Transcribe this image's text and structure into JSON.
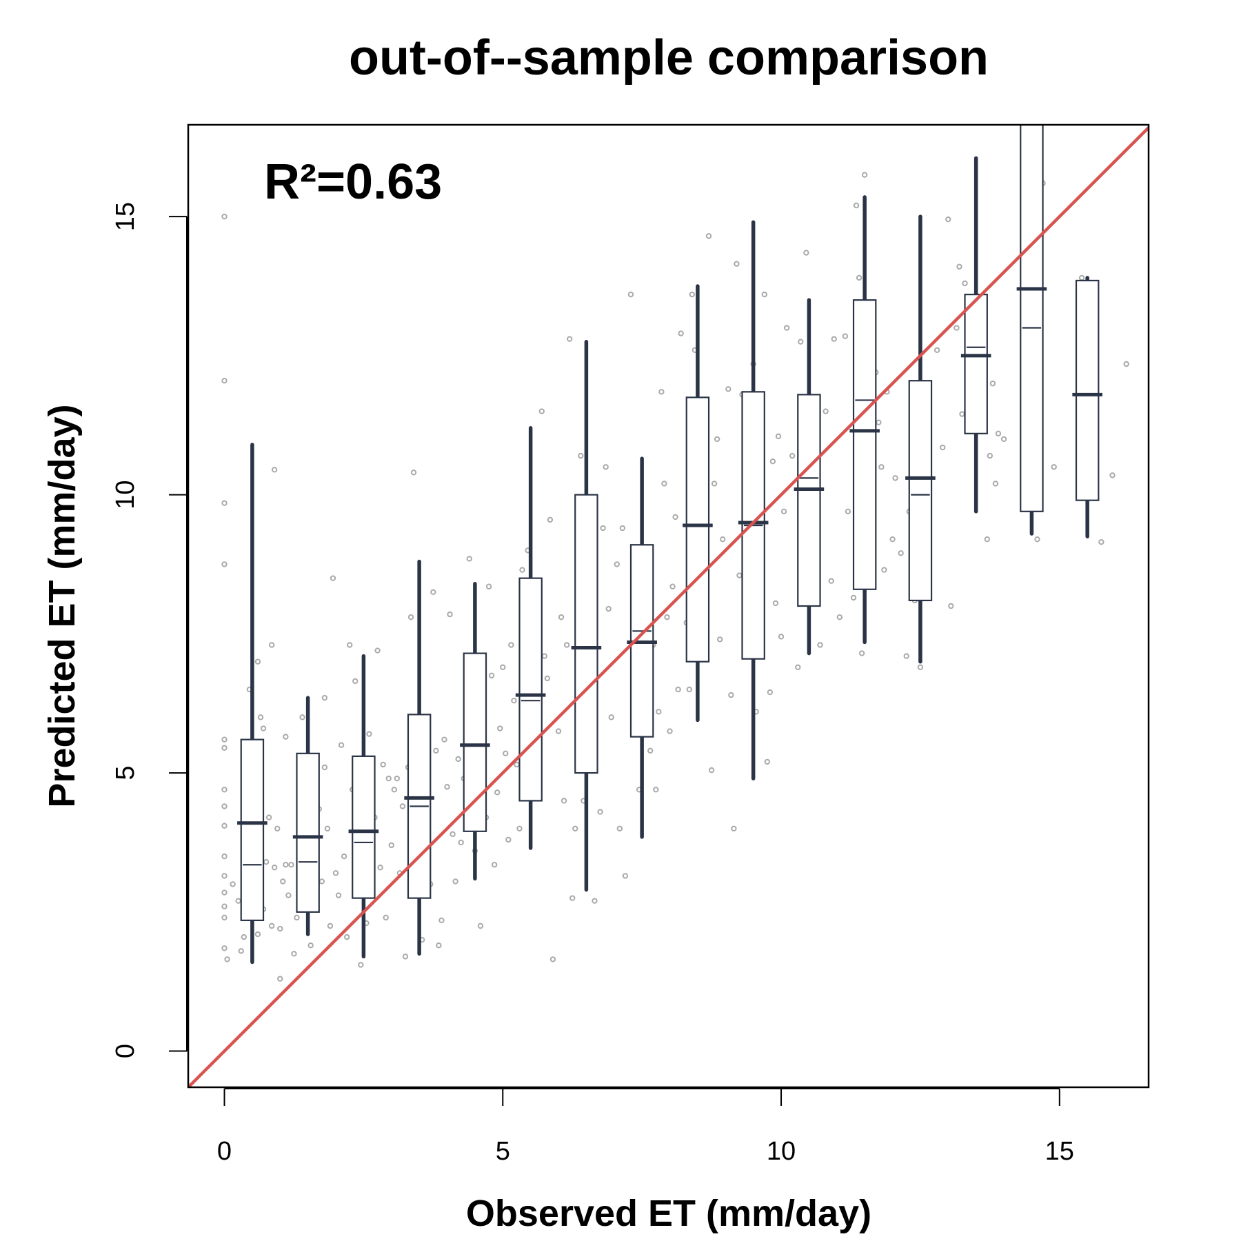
{
  "chart_data": {
    "type": "scatter",
    "title": "out-of--sample comparison",
    "xlabel": "Observed ET (mm/day)",
    "ylabel": "Predicted ET (mm/day)",
    "annotation": "R²=0.63",
    "xlim": [
      -0.65,
      16.6
    ],
    "ylim": [
      -0.65,
      16.65
    ],
    "xticks": [
      0,
      5,
      10,
      15
    ],
    "yticks": [
      0,
      5,
      10,
      15
    ],
    "grid": false,
    "colors": {
      "points": "#aaaaaa",
      "boxes": "#2b3446",
      "identity_line": "#d9534f"
    },
    "identity_line": {
      "x": [
        -0.65,
        16.6
      ],
      "y": [
        -0.65,
        16.6
      ]
    },
    "bins": [
      {
        "x": 0.5,
        "q1": 2.35,
        "median": 3.35,
        "q3": 5.6,
        "mean": 4.1,
        "whisker_low": 1.6,
        "whisker_high": 10.9
      },
      {
        "x": 1.5,
        "q1": 2.5,
        "median": 3.4,
        "q3": 5.35,
        "mean": 3.85,
        "whisker_low": 2.1,
        "whisker_high": 6.35
      },
      {
        "x": 2.5,
        "q1": 2.75,
        "median": 3.75,
        "q3": 5.3,
        "mean": 3.95,
        "whisker_low": 1.7,
        "whisker_high": 7.1
      },
      {
        "x": 3.5,
        "q1": 2.75,
        "median": 4.4,
        "q3": 6.05,
        "mean": 4.55,
        "whisker_low": 1.75,
        "whisker_high": 8.8
      },
      {
        "x": 4.5,
        "q1": 3.95,
        "median": 5.5,
        "q3": 7.15,
        "mean": 5.5,
        "whisker_low": 3.1,
        "whisker_high": 8.4
      },
      {
        "x": 5.5,
        "q1": 4.5,
        "median": 6.3,
        "q3": 8.5,
        "mean": 6.4,
        "whisker_low": 3.65,
        "whisker_high": 11.2
      },
      {
        "x": 6.5,
        "q1": 5.0,
        "median": 7.25,
        "q3": 10.0,
        "mean": 7.25,
        "whisker_low": 2.9,
        "whisker_high": 12.75
      },
      {
        "x": 7.5,
        "q1": 5.65,
        "median": 7.55,
        "q3": 9.1,
        "mean": 7.35,
        "whisker_low": 3.85,
        "whisker_high": 10.65
      },
      {
        "x": 8.5,
        "q1": 7.0,
        "median": 9.45,
        "q3": 11.75,
        "mean": 9.45,
        "whisker_low": 5.95,
        "whisker_high": 13.75
      },
      {
        "x": 9.5,
        "q1": 7.05,
        "median": 9.45,
        "q3": 11.85,
        "mean": 9.5,
        "whisker_low": 4.9,
        "whisker_high": 14.9
      },
      {
        "x": 10.5,
        "q1": 8.0,
        "median": 10.3,
        "q3": 11.8,
        "mean": 10.1,
        "whisker_low": 7.15,
        "whisker_high": 13.5
      },
      {
        "x": 11.5,
        "q1": 8.3,
        "median": 11.7,
        "q3": 13.5,
        "mean": 11.15,
        "whisker_low": 7.35,
        "whisker_high": 15.35
      },
      {
        "x": 12.5,
        "q1": 8.1,
        "median": 10.0,
        "q3": 12.05,
        "mean": 10.3,
        "whisker_low": 7.0,
        "whisker_high": 15.0
      },
      {
        "x": 13.5,
        "q1": 11.1,
        "median": 12.65,
        "q3": 13.6,
        "mean": 12.5,
        "whisker_low": 9.7,
        "whisker_high": 16.05
      },
      {
        "x": 14.5,
        "q1": 9.7,
        "median": 13.0,
        "q3": 16.65,
        "mean": 13.7,
        "whisker_low": 9.3,
        "whisker_high": 16.65
      },
      {
        "x": 15.5,
        "q1": 9.9,
        "median": 11.8,
        "q3": 13.85,
        "mean": 11.8,
        "whisker_low": 9.25,
        "whisker_high": 13.9
      }
    ],
    "points": [
      [
        0.0,
        15.0
      ],
      [
        0.0,
        12.05
      ],
      [
        0.0,
        9.85
      ],
      [
        0.0,
        8.75
      ],
      [
        0.0,
        5.6
      ],
      [
        0.0,
        5.45
      ],
      [
        0.0,
        4.7
      ],
      [
        0.0,
        4.4
      ],
      [
        0.0,
        4.05
      ],
      [
        0.0,
        3.5
      ],
      [
        0.0,
        3.15
      ],
      [
        0.0,
        2.85
      ],
      [
        0.0,
        2.6
      ],
      [
        0.0,
        2.4
      ],
      [
        0.0,
        1.85
      ],
      [
        0.05,
        1.65
      ],
      [
        0.15,
        3.0
      ],
      [
        0.25,
        2.7
      ],
      [
        0.3,
        1.8
      ],
      [
        0.35,
        2.05
      ],
      [
        0.35,
        3.9
      ],
      [
        0.4,
        4.5
      ],
      [
        0.4,
        2.9
      ],
      [
        0.45,
        6.5
      ],
      [
        0.5,
        4.35
      ],
      [
        0.55,
        3.2
      ],
      [
        0.55,
        2.7
      ],
      [
        0.6,
        4.5
      ],
      [
        0.6,
        7.0
      ],
      [
        0.6,
        2.1
      ],
      [
        0.65,
        3.8
      ],
      [
        0.65,
        6.0
      ],
      [
        0.7,
        5.8
      ],
      [
        0.7,
        2.55
      ],
      [
        0.75,
        3.4
      ],
      [
        0.8,
        4.2
      ],
      [
        0.85,
        7.3
      ],
      [
        0.85,
        2.25
      ],
      [
        0.9,
        3.3
      ],
      [
        0.9,
        10.45
      ],
      [
        0.95,
        4.0
      ],
      [
        1.0,
        1.3
      ],
      [
        1.0,
        2.2
      ],
      [
        1.05,
        3.05
      ],
      [
        1.1,
        5.65
      ],
      [
        1.1,
        3.35
      ],
      [
        1.15,
        2.8
      ],
      [
        1.2,
        3.35
      ],
      [
        1.25,
        1.75
      ],
      [
        1.3,
        2.4
      ],
      [
        1.35,
        2.95
      ],
      [
        1.4,
        6.0
      ],
      [
        1.55,
        1.9
      ],
      [
        1.6,
        2.6
      ],
      [
        1.65,
        3.0
      ],
      [
        1.7,
        4.35
      ],
      [
        1.75,
        3.05
      ],
      [
        1.8,
        6.35
      ],
      [
        1.8,
        5.1
      ],
      [
        1.85,
        4.0
      ],
      [
        1.9,
        2.25
      ],
      [
        1.95,
        8.5
      ],
      [
        2.0,
        3.2
      ],
      [
        2.05,
        2.8
      ],
      [
        2.1,
        5.5
      ],
      [
        2.15,
        3.5
      ],
      [
        2.2,
        2.05
      ],
      [
        2.25,
        7.3
      ],
      [
        2.3,
        4.7
      ],
      [
        2.35,
        6.65
      ],
      [
        2.4,
        3.15
      ],
      [
        2.45,
        1.55
      ],
      [
        2.5,
        4.45
      ],
      [
        2.55,
        2.3
      ],
      [
        2.6,
        5.7
      ],
      [
        2.65,
        3.35
      ],
      [
        2.7,
        4.2
      ],
      [
        2.75,
        7.2
      ],
      [
        2.8,
        3.3
      ],
      [
        2.85,
        5.15
      ],
      [
        2.9,
        2.4
      ],
      [
        2.95,
        4.9
      ],
      [
        3.0,
        3.7
      ],
      [
        3.05,
        4.7
      ],
      [
        3.1,
        4.9
      ],
      [
        3.15,
        3.2
      ],
      [
        3.2,
        4.4
      ],
      [
        3.25,
        1.7
      ],
      [
        3.3,
        5.1
      ],
      [
        3.35,
        7.8
      ],
      [
        3.4,
        10.4
      ],
      [
        3.45,
        3.1
      ],
      [
        3.55,
        2.0
      ],
      [
        3.6,
        4.05
      ],
      [
        3.7,
        3.0
      ],
      [
        3.75,
        8.25
      ],
      [
        3.8,
        5.4
      ],
      [
        3.85,
        1.9
      ],
      [
        3.9,
        2.35
      ],
      [
        3.95,
        5.6
      ],
      [
        4.0,
        4.75
      ],
      [
        4.05,
        7.85
      ],
      [
        4.1,
        3.9
      ],
      [
        4.15,
        3.05
      ],
      [
        4.2,
        5.25
      ],
      [
        4.25,
        3.75
      ],
      [
        4.3,
        4.9
      ],
      [
        4.35,
        6.2
      ],
      [
        4.4,
        8.85
      ],
      [
        4.5,
        3.6
      ],
      [
        4.6,
        2.25
      ],
      [
        4.7,
        4.2
      ],
      [
        4.75,
        8.35
      ],
      [
        4.8,
        6.75
      ],
      [
        4.85,
        3.35
      ],
      [
        4.9,
        4.65
      ],
      [
        4.95,
        5.8
      ],
      [
        5.0,
        6.9
      ],
      [
        5.05,
        5.35
      ],
      [
        5.1,
        3.8
      ],
      [
        5.15,
        7.3
      ],
      [
        5.2,
        6.3
      ],
      [
        5.25,
        5.15
      ],
      [
        5.3,
        4.0
      ],
      [
        5.35,
        8.65
      ],
      [
        5.4,
        5.0
      ],
      [
        5.45,
        9.0
      ],
      [
        5.6,
        4.9
      ],
      [
        5.65,
        5.5
      ],
      [
        5.7,
        11.5
      ],
      [
        5.75,
        7.1
      ],
      [
        5.8,
        6.7
      ],
      [
        5.85,
        9.55
      ],
      [
        5.9,
        1.65
      ],
      [
        6.0,
        5.75
      ],
      [
        6.05,
        7.8
      ],
      [
        6.1,
        4.5
      ],
      [
        6.15,
        7.3
      ],
      [
        6.2,
        12.8
      ],
      [
        6.25,
        2.75
      ],
      [
        6.3,
        4.0
      ],
      [
        6.35,
        9.05
      ],
      [
        6.4,
        10.7
      ],
      [
        6.45,
        4.5
      ],
      [
        6.55,
        8.3
      ],
      [
        6.6,
        7.8
      ],
      [
        6.65,
        2.7
      ],
      [
        6.75,
        4.3
      ],
      [
        6.8,
        9.4
      ],
      [
        6.85,
        10.5
      ],
      [
        6.9,
        7.95
      ],
      [
        6.95,
        6.0
      ],
      [
        7.05,
        8.75
      ],
      [
        7.1,
        4.0
      ],
      [
        7.15,
        9.4
      ],
      [
        7.2,
        3.15
      ],
      [
        7.3,
        13.6
      ],
      [
        7.35,
        7.1
      ],
      [
        7.45,
        4.7
      ],
      [
        7.55,
        6.5
      ],
      [
        7.6,
        8.85
      ],
      [
        7.65,
        5.4
      ],
      [
        7.7,
        7.3
      ],
      [
        7.75,
        4.7
      ],
      [
        7.8,
        6.1
      ],
      [
        7.85,
        11.85
      ],
      [
        7.9,
        10.2
      ],
      [
        7.95,
        7.8
      ],
      [
        8.0,
        5.75
      ],
      [
        8.05,
        8.35
      ],
      [
        8.1,
        9.6
      ],
      [
        8.15,
        6.5
      ],
      [
        8.2,
        12.9
      ],
      [
        8.3,
        7.7
      ],
      [
        8.35,
        6.5
      ],
      [
        8.4,
        13.6
      ],
      [
        8.45,
        12.6
      ],
      [
        8.55,
        11.45
      ],
      [
        8.6,
        9.8
      ],
      [
        8.65,
        7.9
      ],
      [
        8.7,
        14.65
      ],
      [
        8.75,
        5.05
      ],
      [
        8.8,
        10.2
      ],
      [
        8.85,
        11.0
      ],
      [
        8.9,
        7.4
      ],
      [
        8.95,
        9.2
      ],
      [
        9.05,
        11.9
      ],
      [
        9.1,
        6.4
      ],
      [
        9.15,
        4.0
      ],
      [
        9.2,
        14.15
      ],
      [
        9.25,
        8.55
      ],
      [
        9.3,
        11.8
      ],
      [
        9.4,
        9.8
      ],
      [
        9.45,
        7.3
      ],
      [
        9.5,
        12.35
      ],
      [
        9.55,
        6.1
      ],
      [
        9.6,
        10.3
      ],
      [
        9.7,
        13.6
      ],
      [
        9.75,
        5.2
      ],
      [
        9.8,
        6.45
      ],
      [
        9.85,
        10.6
      ],
      [
        9.9,
        8.05
      ],
      [
        9.95,
        11.05
      ],
      [
        10.0,
        7.45
      ],
      [
        10.05,
        9.7
      ],
      [
        10.1,
        13.0
      ],
      [
        10.2,
        10.7
      ],
      [
        10.3,
        6.9
      ],
      [
        10.35,
        12.75
      ],
      [
        10.45,
        14.35
      ],
      [
        10.5,
        9.05
      ],
      [
        10.6,
        10.2
      ],
      [
        10.7,
        7.3
      ],
      [
        10.8,
        11.5
      ],
      [
        10.9,
        8.45
      ],
      [
        10.95,
        12.8
      ],
      [
        11.05,
        7.8
      ],
      [
        11.15,
        12.85
      ],
      [
        11.2,
        9.7
      ],
      [
        11.3,
        8.15
      ],
      [
        11.35,
        15.2
      ],
      [
        11.4,
        13.9
      ],
      [
        11.45,
        7.15
      ],
      [
        11.5,
        15.75
      ],
      [
        11.55,
        10.25
      ],
      [
        11.6,
        12.0
      ],
      [
        11.65,
        9.8
      ],
      [
        11.7,
        12.2
      ],
      [
        11.75,
        11.3
      ],
      [
        11.8,
        10.5
      ],
      [
        11.85,
        8.65
      ],
      [
        11.9,
        11.85
      ],
      [
        12.0,
        9.2
      ],
      [
        12.05,
        10.3
      ],
      [
        12.15,
        8.95
      ],
      [
        12.25,
        7.1
      ],
      [
        12.3,
        9.7
      ],
      [
        12.4,
        8.1
      ],
      [
        12.5,
        6.9
      ],
      [
        12.55,
        11.0
      ],
      [
        12.65,
        9.4
      ],
      [
        12.8,
        12.6
      ],
      [
        12.9,
        10.85
      ],
      [
        13.0,
        14.95
      ],
      [
        13.05,
        8.0
      ],
      [
        13.15,
        13.0
      ],
      [
        13.2,
        14.1
      ],
      [
        13.25,
        11.45
      ],
      [
        13.3,
        13.8
      ],
      [
        13.4,
        12.55
      ],
      [
        13.6,
        11.35
      ],
      [
        13.7,
        9.2
      ],
      [
        13.75,
        10.7
      ],
      [
        13.8,
        12.0
      ],
      [
        13.85,
        10.2
      ],
      [
        13.9,
        11.1
      ],
      [
        14.0,
        11.0
      ],
      [
        14.35,
        16.2
      ],
      [
        14.6,
        9.2
      ],
      [
        14.7,
        15.6
      ],
      [
        14.9,
        10.5
      ],
      [
        15.4,
        13.9
      ],
      [
        15.75,
        9.15
      ],
      [
        15.95,
        10.35
      ],
      [
        16.2,
        12.35
      ]
    ]
  }
}
